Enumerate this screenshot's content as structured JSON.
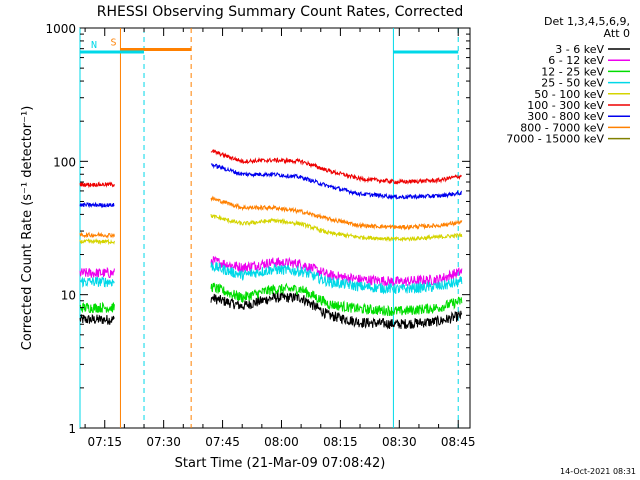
{
  "chart_data": {
    "type": "line",
    "title": "RHESSI Observing Summary Count Rates, Corrected",
    "xlabel": "Start Time (21-Mar-09 07:08:42)",
    "ylabel": "Corrected Count Rate (s⁻¹ detector⁻¹)",
    "y_scale": "log",
    "ylim": [
      1,
      1000
    ],
    "y_ticks": [
      "1",
      "10",
      "100",
      "1000"
    ],
    "x_axis": {
      "start": "07:08:42",
      "end": "08:48:00",
      "unit": "time of day"
    },
    "x_ticks": [
      "07:15",
      "07:30",
      "07:45",
      "08:00",
      "08:15",
      "08:30",
      "08:45"
    ],
    "detector_note": [
      "Det 1,3,4,5,6,9,",
      "Att 0"
    ],
    "stamp": "14-Oct-2021 08:31",
    "series": [
      {
        "name": "3 - 6 keV",
        "color": "#000000",
        "points": [
          [
            "07:08:42",
            6.5
          ],
          [
            "07:17:30",
            6.5
          ],
          [
            "07:42:00",
            9.5
          ],
          [
            "07:50:00",
            8.2
          ],
          [
            "07:58:00",
            9.5
          ],
          [
            "08:05:00",
            9.5
          ],
          [
            "08:12:00",
            7.0
          ],
          [
            "08:20:00",
            6.2
          ],
          [
            "08:30:00",
            6.0
          ],
          [
            "08:40:00",
            6.3
          ],
          [
            "08:46:00",
            7.0
          ]
        ]
      },
      {
        "name": "6 - 12 keV",
        "color": "#ee00ee",
        "points": [
          [
            "07:08:42",
            14.5
          ],
          [
            "07:17:30",
            14.5
          ],
          [
            "07:42:00",
            18
          ],
          [
            "07:50:00",
            16
          ],
          [
            "07:58:00",
            17.5
          ],
          [
            "08:05:00",
            17
          ],
          [
            "08:12:00",
            14
          ],
          [
            "08:20:00",
            13
          ],
          [
            "08:30:00",
            12.5
          ],
          [
            "08:40:00",
            13
          ],
          [
            "08:46:00",
            15
          ]
        ]
      },
      {
        "name": "12 - 25 keV",
        "color": "#00dd00",
        "points": [
          [
            "07:08:42",
            8.0
          ],
          [
            "07:17:30",
            8.0
          ],
          [
            "07:42:00",
            11.5
          ],
          [
            "07:50:00",
            9.5
          ],
          [
            "07:58:00",
            11
          ],
          [
            "08:05:00",
            11
          ],
          [
            "08:12:00",
            8.5
          ],
          [
            "08:20:00",
            7.8
          ],
          [
            "08:30:00",
            7.5
          ],
          [
            "08:40:00",
            8.0
          ],
          [
            "08:46:00",
            9.0
          ]
        ]
      },
      {
        "name": "25 - 50 keV",
        "color": "#00d8e8",
        "points": [
          [
            "07:08:42",
            12.5
          ],
          [
            "07:17:30",
            12.5
          ],
          [
            "07:42:00",
            16.5
          ],
          [
            "07:50:00",
            14
          ],
          [
            "07:58:00",
            15.5
          ],
          [
            "08:05:00",
            15
          ],
          [
            "08:12:00",
            12.5
          ],
          [
            "08:20:00",
            11.5
          ],
          [
            "08:30:00",
            11
          ],
          [
            "08:40:00",
            11.5
          ],
          [
            "08:46:00",
            12.5
          ]
        ]
      },
      {
        "name": "50 - 100 keV",
        "color": "#d4d400",
        "points": [
          [
            "07:08:42",
            25
          ],
          [
            "07:17:30",
            25
          ],
          [
            "07:42:00",
            39
          ],
          [
            "07:50:00",
            34
          ],
          [
            "07:58:00",
            36
          ],
          [
            "08:05:00",
            34
          ],
          [
            "08:12:00",
            29
          ],
          [
            "08:20:00",
            27
          ],
          [
            "08:30:00",
            26
          ],
          [
            "08:40:00",
            27
          ],
          [
            "08:46:00",
            28
          ]
        ]
      },
      {
        "name": "100 - 300 keV",
        "color": "#ee0000",
        "points": [
          [
            "07:08:42",
            67
          ],
          [
            "07:17:30",
            67
          ],
          [
            "07:42:00",
            120
          ],
          [
            "07:50:00",
            100
          ],
          [
            "07:58:00",
            102
          ],
          [
            "08:05:00",
            100
          ],
          [
            "08:12:00",
            85
          ],
          [
            "08:20:00",
            74
          ],
          [
            "08:30:00",
            70
          ],
          [
            "08:40:00",
            72
          ],
          [
            "08:46:00",
            78
          ]
        ]
      },
      {
        "name": "300 - 800 keV",
        "color": "#0000ee",
        "points": [
          [
            "07:08:42",
            47
          ],
          [
            "07:17:30",
            47
          ],
          [
            "07:42:00",
            95
          ],
          [
            "07:50:00",
            80
          ],
          [
            "07:58:00",
            80
          ],
          [
            "08:05:00",
            76
          ],
          [
            "08:12:00",
            65
          ],
          [
            "08:20:00",
            57
          ],
          [
            "08:30:00",
            54
          ],
          [
            "08:40:00",
            55
          ],
          [
            "08:46:00",
            58
          ]
        ]
      },
      {
        "name": "800 - 7000 keV",
        "color": "#ff8000",
        "points": [
          [
            "07:08:42",
            28
          ],
          [
            "07:17:30",
            28
          ],
          [
            "07:42:00",
            53
          ],
          [
            "07:50:00",
            45
          ],
          [
            "07:58:00",
            45
          ],
          [
            "08:05:00",
            42
          ],
          [
            "08:12:00",
            37
          ],
          [
            "08:20:00",
            33
          ],
          [
            "08:30:00",
            32
          ],
          [
            "08:40:00",
            33
          ],
          [
            "08:46:00",
            35
          ]
        ]
      },
      {
        "name": "7000 - 15000 keV",
        "color": "#808000",
        "points": []
      }
    ],
    "gaps": [
      [
        "07:17:30",
        "07:42:00"
      ]
    ],
    "markers": {
      "flags": [
        {
          "label": "S",
          "color": "#ff8000",
          "start": "07:19:00",
          "end": "07:37:00",
          "level": 690
        },
        {
          "label": "N",
          "color": "#00d8e8",
          "start": "07:08:42",
          "end": "07:25:00",
          "level": 660
        },
        {
          "label": "",
          "color": "#00d8e8",
          "start": "08:28:30",
          "end": "08:45:00",
          "level": 660
        }
      ],
      "vlines": [
        {
          "time": "07:08:42",
          "color": "#00d8e8",
          "dash": false
        },
        {
          "time": "07:19:00",
          "color": "#ff8000",
          "dash": false
        },
        {
          "time": "07:25:00",
          "color": "#00d8e8",
          "dash": true
        },
        {
          "time": "07:37:00",
          "color": "#ff8000",
          "dash": true
        },
        {
          "time": "08:28:30",
          "color": "#00d8e8",
          "dash": false
        },
        {
          "time": "08:45:00",
          "color": "#00d8e8",
          "dash": true
        }
      ]
    }
  }
}
